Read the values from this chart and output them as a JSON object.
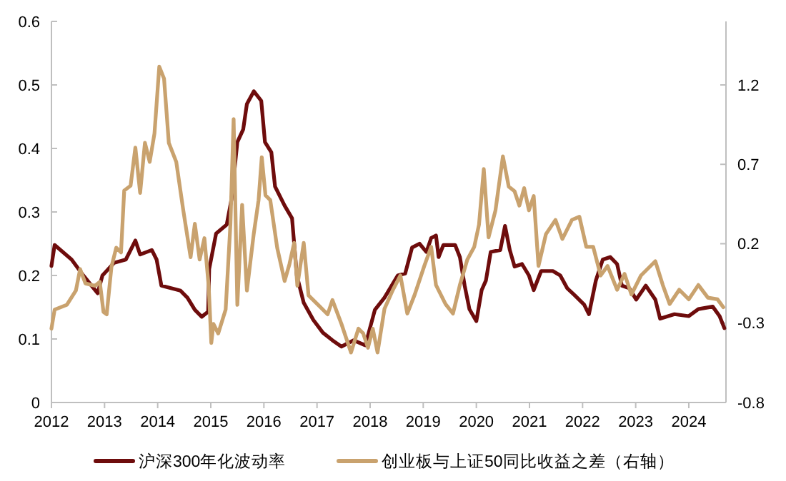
{
  "chart_data": {
    "type": "line",
    "xlim": [
      2012,
      2024.7
    ],
    "xticks": [
      2012,
      2013,
      2014,
      2015,
      2016,
      2017,
      2018,
      2019,
      2020,
      2021,
      2022,
      2023,
      2024
    ],
    "ylim": [
      0,
      0.6
    ],
    "yticks": [
      0,
      0.1,
      0.2,
      0.3,
      0.4,
      0.5,
      0.6
    ],
    "y2lim": [
      -0.8,
      1.6
    ],
    "y2ticks": [
      -0.8,
      -0.3,
      0.2,
      0.7,
      1.2
    ],
    "grid": false,
    "legend": "bottom",
    "marker": "none",
    "line_style": "solid",
    "series": [
      {
        "name": "沪深300年化波动率",
        "color": "#6e0c0c",
        "x": [
          2012.0,
          2012.06,
          2012.38,
          2012.6,
          2012.87,
          2012.96,
          2013.18,
          2013.4,
          2013.58,
          2013.67,
          2013.89,
          2013.98,
          2014.07,
          2014.25,
          2014.43,
          2014.56,
          2014.7,
          2014.83,
          2014.95,
          2014.97,
          2015.1,
          2015.3,
          2015.39,
          2015.5,
          2015.61,
          2015.68,
          2015.81,
          2015.95,
          2016.02,
          2016.14,
          2016.21,
          2016.39,
          2016.53,
          2016.62,
          2016.75,
          2016.93,
          2017.11,
          2017.29,
          2017.46,
          2017.69,
          2017.91,
          2018.09,
          2018.27,
          2018.52,
          2018.66,
          2018.79,
          2018.93,
          2019.06,
          2019.15,
          2019.24,
          2019.29,
          2019.38,
          2019.6,
          2019.69,
          2019.78,
          2019.87,
          2020.0,
          2020.1,
          2020.18,
          2020.27,
          2020.45,
          2020.54,
          2020.63,
          2020.72,
          2020.86,
          2020.99,
          2021.08,
          2021.22,
          2021.44,
          2021.58,
          2021.71,
          2021.85,
          2022.03,
          2022.12,
          2022.25,
          2022.38,
          2022.52,
          2022.65,
          2022.74,
          2022.88,
          2023.01,
          2023.19,
          2023.37,
          2023.46,
          2023.73,
          2024.0,
          2024.18,
          2024.45,
          2024.58,
          2024.67
        ],
        "values": [
          0.215,
          0.248,
          0.225,
          0.2,
          0.172,
          0.2,
          0.22,
          0.225,
          0.255,
          0.233,
          0.24,
          0.225,
          0.184,
          0.18,
          0.176,
          0.165,
          0.146,
          0.135,
          0.143,
          0.21,
          0.266,
          0.28,
          0.32,
          0.41,
          0.43,
          0.47,
          0.49,
          0.475,
          0.41,
          0.394,
          0.34,
          0.31,
          0.29,
          0.2,
          0.157,
          0.13,
          0.11,
          0.098,
          0.088,
          0.098,
          0.09,
          0.146,
          0.165,
          0.2,
          0.203,
          0.244,
          0.25,
          0.237,
          0.259,
          0.263,
          0.229,
          0.248,
          0.248,
          0.229,
          0.184,
          0.147,
          0.128,
          0.177,
          0.192,
          0.237,
          0.24,
          0.278,
          0.24,
          0.214,
          0.218,
          0.2,
          0.177,
          0.207,
          0.207,
          0.2,
          0.18,
          0.169,
          0.154,
          0.139,
          0.192,
          0.225,
          0.229,
          0.218,
          0.184,
          0.18,
          0.162,
          0.184,
          0.162,
          0.132,
          0.139,
          0.136,
          0.147,
          0.151,
          0.136,
          0.117
        ]
      },
      {
        "name": "创业板与上证50同比收益之差（右轴）",
        "color": "#c9a26e",
        "axis": "y2",
        "x": [
          2012.0,
          2012.06,
          2012.29,
          2012.46,
          2012.54,
          2012.64,
          2012.82,
          2012.91,
          2012.98,
          2013.04,
          2013.13,
          2013.22,
          2013.31,
          2013.37,
          2013.49,
          2013.58,
          2013.67,
          2013.76,
          2013.85,
          2013.94,
          2014.03,
          2014.12,
          2014.21,
          2014.35,
          2014.48,
          2014.62,
          2014.7,
          2014.79,
          2014.88,
          2014.96,
          2015.01,
          2015.05,
          2015.14,
          2015.28,
          2015.37,
          2015.43,
          2015.5,
          2015.59,
          2015.68,
          2015.81,
          2015.9,
          2015.96,
          2016.03,
          2016.12,
          2016.25,
          2016.39,
          2016.48,
          2016.57,
          2016.63,
          2016.75,
          2016.84,
          2017.02,
          2017.2,
          2017.29,
          2017.46,
          2017.64,
          2017.78,
          2017.87,
          2017.96,
          2018.05,
          2018.14,
          2018.27,
          2018.43,
          2018.57,
          2018.7,
          2018.84,
          2019.02,
          2019.15,
          2019.24,
          2019.42,
          2019.56,
          2019.69,
          2019.83,
          2019.96,
          2020.05,
          2020.14,
          2020.23,
          2020.36,
          2020.5,
          2020.61,
          2020.72,
          2020.81,
          2020.9,
          2020.99,
          2021.08,
          2021.17,
          2021.31,
          2021.49,
          2021.62,
          2021.8,
          2021.94,
          2022.07,
          2022.2,
          2022.34,
          2022.47,
          2022.65,
          2022.79,
          2022.92,
          2023.1,
          2023.37,
          2023.51,
          2023.64,
          2023.82,
          2024.0,
          2024.18,
          2024.36,
          2024.54,
          2024.65
        ],
        "values": [
          -0.335,
          -0.215,
          -0.185,
          -0.095,
          0.04,
          -0.05,
          -0.065,
          -0.04,
          -0.23,
          -0.245,
          0.055,
          0.175,
          0.145,
          0.535,
          0.565,
          0.805,
          0.52,
          0.835,
          0.715,
          0.895,
          1.315,
          1.24,
          0.835,
          0.715,
          0.415,
          0.115,
          0.325,
          0.1,
          0.235,
          -0.065,
          -0.425,
          -0.305,
          -0.365,
          -0.215,
          0.325,
          0.985,
          -0.185,
          0.445,
          -0.095,
          0.265,
          0.475,
          0.745,
          0.505,
          0.475,
          0.175,
          -0.035,
          0.07,
          0.205,
          -0.065,
          0.205,
          -0.125,
          -0.185,
          -0.245,
          -0.155,
          -0.305,
          -0.485,
          -0.335,
          -0.365,
          -0.455,
          -0.335,
          -0.485,
          -0.21,
          -0.09,
          0.0,
          -0.24,
          -0.12,
          0.06,
          0.18,
          -0.06,
          -0.18,
          -0.24,
          -0.06,
          0.1,
          0.18,
          0.32,
          0.67,
          0.24,
          0.41,
          0.75,
          0.56,
          0.53,
          0.44,
          0.55,
          0.41,
          0.5,
          0.06,
          0.26,
          0.35,
          0.23,
          0.35,
          0.37,
          0.18,
          0.18,
          0.0,
          0.06,
          -0.09,
          0.01,
          -0.12,
          0.0,
          0.09,
          -0.06,
          -0.18,
          -0.09,
          -0.15,
          -0.06,
          -0.14,
          -0.15,
          -0.2
        ]
      }
    ]
  }
}
